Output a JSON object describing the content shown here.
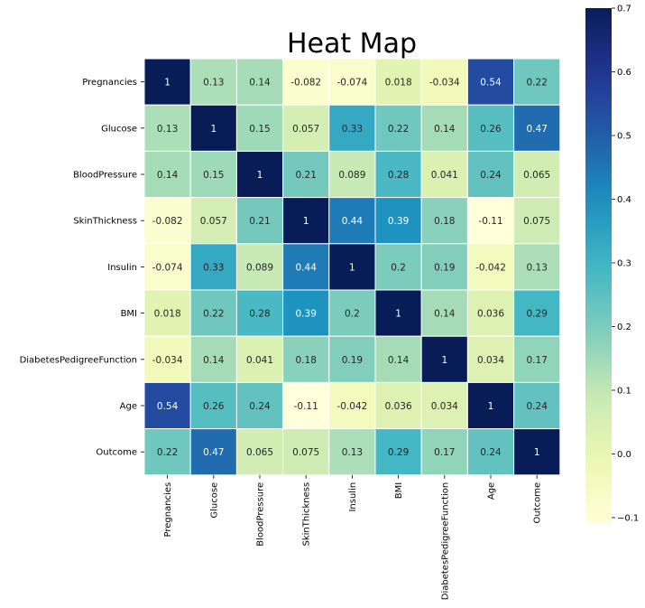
{
  "chart_data": {
    "type": "heatmap",
    "title": "Heat Map",
    "xlabel": "",
    "ylabel": "",
    "labels": [
      "Pregnancies",
      "Glucose",
      "BloodPressure",
      "SkinThickness",
      "Insulin",
      "BMI",
      "DiabetesPedigreeFunction",
      "Age",
      "Outcome"
    ],
    "values": [
      [
        1,
        0.13,
        0.14,
        -0.082,
        -0.074,
        0.018,
        -0.034,
        0.54,
        0.22
      ],
      [
        0.13,
        1,
        0.15,
        0.057,
        0.33,
        0.22,
        0.14,
        0.26,
        0.47
      ],
      [
        0.14,
        0.15,
        1,
        0.21,
        0.089,
        0.28,
        0.041,
        0.24,
        0.065
      ],
      [
        -0.082,
        0.057,
        0.21,
        1,
        0.44,
        0.39,
        0.18,
        -0.11,
        0.075
      ],
      [
        -0.074,
        0.33,
        0.089,
        0.44,
        1,
        0.2,
        0.19,
        -0.042,
        0.13
      ],
      [
        0.018,
        0.22,
        0.28,
        0.39,
        0.2,
        1,
        0.14,
        0.036,
        0.29
      ],
      [
        -0.034,
        0.14,
        0.041,
        0.18,
        0.19,
        0.14,
        1,
        0.034,
        0.17
      ],
      [
        0.54,
        0.26,
        0.24,
        -0.11,
        -0.042,
        0.036,
        0.034,
        1,
        0.24
      ],
      [
        0.22,
        0.47,
        0.065,
        0.075,
        0.13,
        0.29,
        0.17,
        0.24,
        1
      ]
    ],
    "cell_labels": [
      [
        "1",
        "0.13",
        "0.14",
        "-0.082",
        "-0.074",
        "0.018",
        "-0.034",
        "0.54",
        "0.22"
      ],
      [
        "0.13",
        "1",
        "0.15",
        "0.057",
        "0.33",
        "0.22",
        "0.14",
        "0.26",
        "0.47"
      ],
      [
        "0.14",
        "0.15",
        "1",
        "0.21",
        "0.089",
        "0.28",
        "0.041",
        "0.24",
        "0.065"
      ],
      [
        "-0.082",
        "0.057",
        "0.21",
        "1",
        "0.44",
        "0.39",
        "0.18",
        "-0.11",
        "0.075"
      ],
      [
        "-0.074",
        "0.33",
        "0.089",
        "0.44",
        "1",
        "0.2",
        "0.19",
        "-0.042",
        "0.13"
      ],
      [
        "0.018",
        "0.22",
        "0.28",
        "0.39",
        "0.2",
        "1",
        "0.14",
        "0.036",
        "0.29"
      ],
      [
        "-0.034",
        "0.14",
        "0.041",
        "0.18",
        "0.19",
        "0.14",
        "1",
        "0.034",
        "0.17"
      ],
      [
        "0.54",
        "0.26",
        "0.24",
        "-0.11",
        "-0.042",
        "0.036",
        "0.034",
        "1",
        "0.24"
      ],
      [
        "0.22",
        "0.47",
        "0.065",
        "0.075",
        "0.13",
        "0.29",
        "0.17",
        "0.24",
        "1"
      ]
    ],
    "colormap": "YlGnBu",
    "vmin": -0.11,
    "vmax": 0.7,
    "colorbar": {
      "range": [
        -0.11,
        0.7
      ],
      "ticks": [
        -0.1,
        0.0,
        0.1,
        0.2,
        0.3,
        0.4,
        0.5,
        0.6,
        0.7
      ],
      "tick_labels": [
        "−0.1",
        "0.0",
        "0.1",
        "0.2",
        "0.3",
        "0.4",
        "0.5",
        "0.6",
        "0.7"
      ],
      "placement": "right"
    },
    "grid": false,
    "cell_separator_color": "#ffffff"
  }
}
